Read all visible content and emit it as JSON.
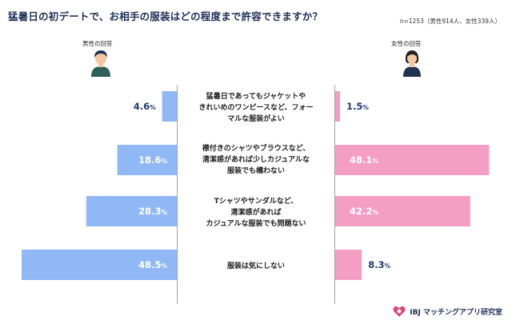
{
  "title": "猛暑日の初デートで、お相手の服装はどの程度まで許容できますか？",
  "sample_note": "n=1253（男性914人、女性339人）",
  "male_label": "男性の回答",
  "female_label": "女性の回答",
  "brand": "IBJ マッチングアプリ研究室",
  "colors": {
    "male_bar": "#8fb8f4",
    "female_bar": "#f49ec4",
    "value_text_dark": "#1f3b73",
    "value_text_light": "#ffffff"
  },
  "chart_data": {
    "type": "bar",
    "orientation": "diverging-horizontal",
    "unit": "%",
    "categories": [
      "猛暑日であってもジャケットや\nきれいめのワンピースなど、フォー\nマルな服装がよい",
      "襟付きのシャツやブラウスなど、\n清潔感があれば少しカジュアルな\n服装でも構わない",
      "Tシャツやサンダルなど、\n清潔感があれば\nカジュアルな服装でも問題ない",
      "服装は気にしない"
    ],
    "series": [
      {
        "name": "男性の回答",
        "values": [
          4.6,
          18.6,
          28.3,
          48.5
        ]
      },
      {
        "name": "女性の回答",
        "values": [
          1.5,
          48.1,
          42.2,
          8.3
        ]
      }
    ],
    "value_labels": {
      "male": [
        "4.6",
        "18.6",
        "28.3",
        "48.5"
      ],
      "female": [
        "1.5",
        "48.1",
        "42.2",
        "8.3"
      ]
    }
  }
}
